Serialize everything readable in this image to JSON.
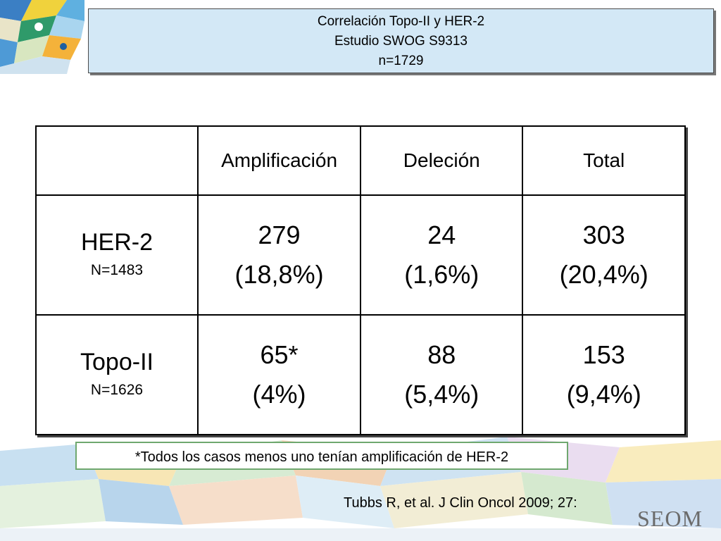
{
  "title": {
    "line1": "Correlación Topo-II y HER-2",
    "line2": "Estudio SWOG S9313",
    "line3": "n=1729"
  },
  "table": {
    "headers": [
      "",
      "Amplificación",
      "Deleción",
      "Total"
    ],
    "rows": [
      {
        "name": "HER-2",
        "sub": "N=1483",
        "cells": [
          {
            "value": "279",
            "pct": "(18,8%)"
          },
          {
            "value": "24",
            "pct": "(1,6%)"
          },
          {
            "value": "303",
            "pct": "(20,4%)"
          }
        ]
      },
      {
        "name": "Topo-II",
        "sub": "N=1626",
        "cells": [
          {
            "value": "65*",
            "pct": "(4%)"
          },
          {
            "value": "88",
            "pct": "(5,4%)"
          },
          {
            "value": "153",
            "pct": "(9,4%)"
          }
        ]
      }
    ]
  },
  "footnote": "*Todos los casos menos uno tenían amplificación de HER-2",
  "citation": "Tubbs R, et al. J Clin Oncol 2009; 27:",
  "logo": "SEOM",
  "colors": {
    "title_bg": "#d3e8f6",
    "footnote_border": "#6fa86f",
    "logo": "#6b6b6b"
  }
}
